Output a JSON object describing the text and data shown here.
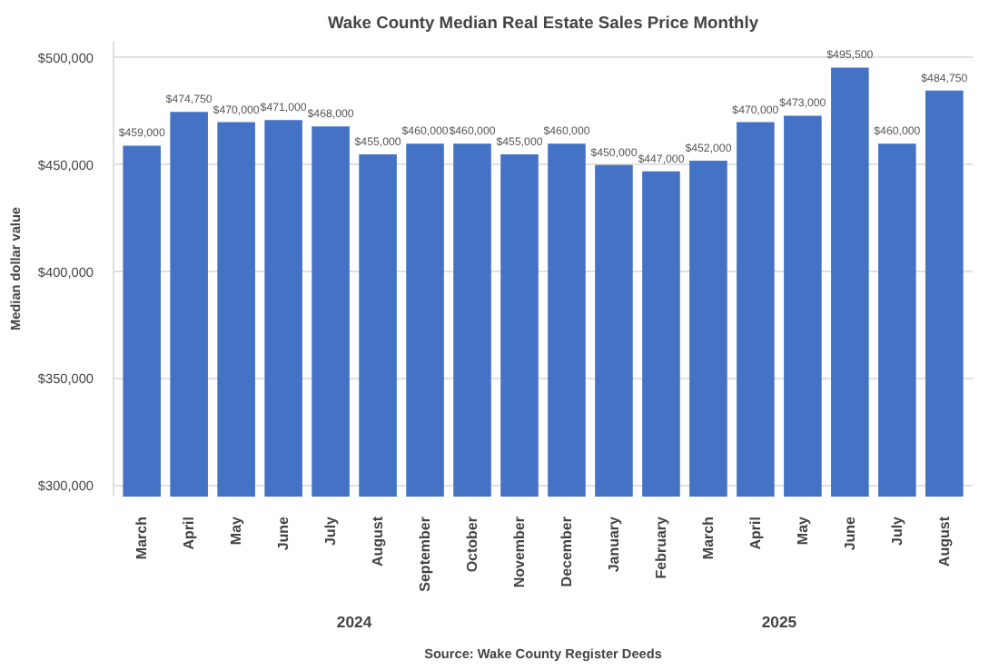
{
  "chart_data": {
    "type": "bar",
    "title": "Wake County Median Real Estate Sales Price Monthly",
    "ylabel": "Median dollar value",
    "categories": [
      "March",
      "April",
      "May",
      "June",
      "July",
      "August",
      "September",
      "October",
      "November",
      "December",
      "January",
      "February",
      "March",
      "April",
      "May",
      "June",
      "July",
      "August"
    ],
    "values": [
      459000,
      474750,
      470000,
      471000,
      468000,
      455000,
      460000,
      460000,
      455000,
      460000,
      450000,
      447000,
      452000,
      470000,
      473000,
      495500,
      460000,
      484750
    ],
    "value_labels": [
      "$459,000",
      "$474,750",
      "$470,000",
      "$471,000",
      "$468,000",
      "$455,000",
      "$460,000",
      "$460,000",
      "$455,000",
      "$460,000",
      "$450,000",
      "$447,000",
      "$452,000",
      "$470,000",
      "$473,000",
      "$495,500",
      "$460,000",
      "$484,750"
    ],
    "color": "#4472c4",
    "ylim": [
      295000,
      508000
    ],
    "yticks": [
      {
        "value": 300000,
        "label": "$300,000"
      },
      {
        "value": 350000,
        "label": "$350,000"
      },
      {
        "value": 400000,
        "label": "$400,000"
      },
      {
        "value": 450000,
        "label": "$450,000"
      },
      {
        "value": 500000,
        "label": "$500,000"
      }
    ],
    "grid": "y",
    "annotations": [
      "2024",
      "2025",
      "Source: Wake County Register Deeds"
    ]
  }
}
